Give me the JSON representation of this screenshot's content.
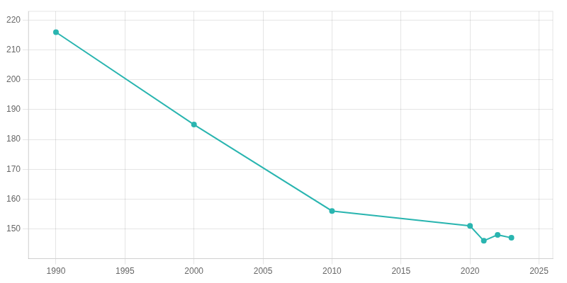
{
  "chart_data": {
    "type": "line",
    "x": [
      1990,
      2000,
      2010,
      2020,
      2021,
      2022,
      2023
    ],
    "values": [
      216,
      185,
      156,
      151,
      146,
      148,
      147
    ],
    "color": "#2ab5b0",
    "marker": "circle",
    "xlim": [
      1988,
      2026
    ],
    "xticks": [
      1990,
      1995,
      2000,
      2005,
      2010,
      2015,
      2020,
      2025
    ],
    "ylim": [
      140,
      223
    ],
    "yticks": [
      150,
      160,
      170,
      180,
      190,
      200,
      210,
      220
    ],
    "grid": true
  }
}
